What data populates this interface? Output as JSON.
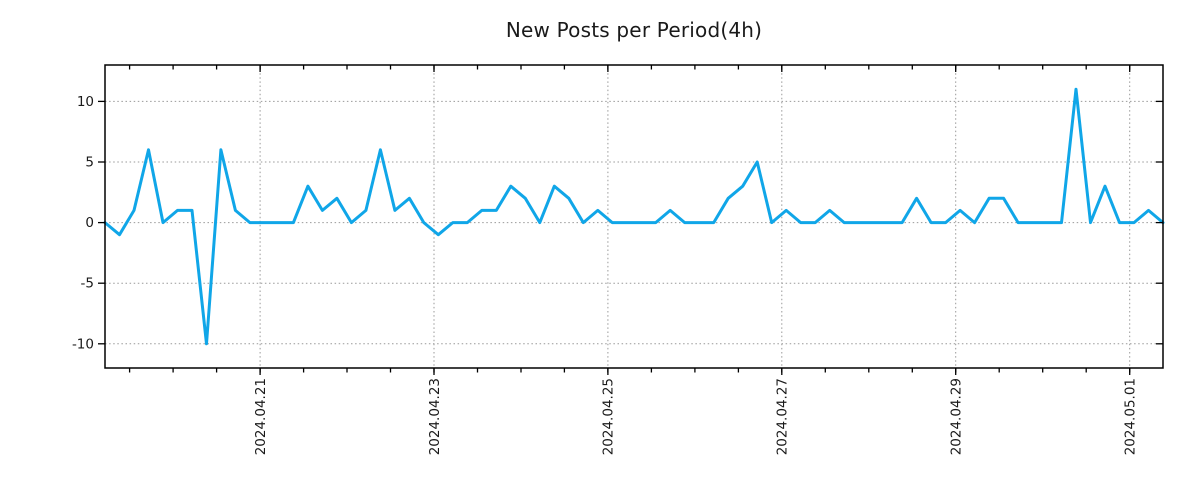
{
  "chart_data": {
    "type": "line",
    "title": "New Posts per Period(4h)",
    "period": "4h",
    "x_tick_labels": [
      "2024.04.21",
      "2024.04.23",
      "2024.04.25",
      "2024.04.27",
      "2024.04.29",
      "2024.05.01"
    ],
    "x_major_tick_indices": [
      10.7,
      22.7,
      34.7,
      46.7,
      58.7,
      70.7
    ],
    "x_minor_tick_first_index": 1.7,
    "x_minor_tick_step": 3,
    "y_tick_values": [
      10,
      5,
      0,
      -5,
      -10
    ],
    "ylim": [
      -12,
      13
    ],
    "grid": "dotted lines at labeled ticks",
    "legend_position": "none",
    "colors": {
      "line": "#10A6E8",
      "grid": "#999999",
      "axis": "#000000",
      "tick_text": "#1a1a1a"
    },
    "series": [
      {
        "name": "new posts",
        "values": [
          0,
          -1,
          1,
          6,
          0,
          1,
          1,
          -10,
          6,
          1,
          0,
          0,
          0,
          0,
          3,
          1,
          2,
          0,
          1,
          6,
          1,
          2,
          0,
          -1,
          0,
          0,
          1,
          1,
          3,
          2,
          0,
          3,
          2,
          0,
          1,
          0,
          0,
          0,
          0,
          1,
          0,
          0,
          0,
          2,
          3,
          5,
          0,
          1,
          0,
          0,
          1,
          0,
          0,
          0,
          0,
          0,
          2,
          0,
          0,
          1,
          0,
          2,
          2,
          0,
          0,
          0,
          0,
          11,
          0,
          3,
          0,
          0,
          1,
          0
        ]
      }
    ]
  }
}
